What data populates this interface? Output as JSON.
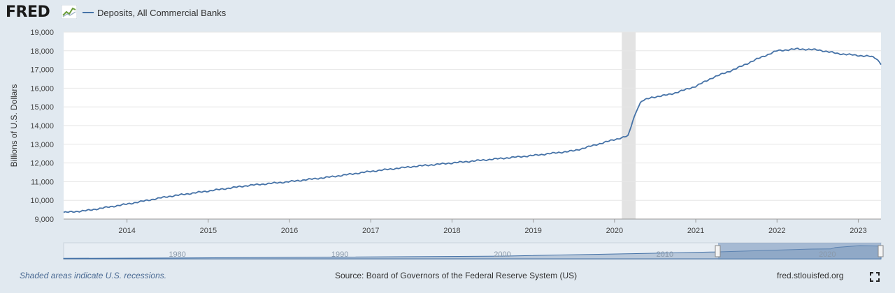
{
  "brand": {
    "name": "FRED"
  },
  "legend": {
    "series_name": "Deposits, All Commercial Banks",
    "color": "#4572a7"
  },
  "footer": {
    "recession_note": "Shaded areas indicate U.S. recessions.",
    "source": "Source: Board of Governors of the Federal Reserve System (US)",
    "url": "fred.stlouisfed.org",
    "fullscreen_icon": "fullscreen-icon"
  },
  "navigator": {
    "labels": [
      "1980",
      "1990",
      "2000",
      "2010",
      "2020"
    ]
  },
  "chart_data": {
    "type": "line",
    "title": "",
    "xlabel": "",
    "ylabel": "Billions of U.S. Dollars",
    "ylim": [
      9000,
      19000
    ],
    "xlim": [
      2013.22,
      2023.28
    ],
    "yticks": [
      "9,000",
      "10,000",
      "11,000",
      "12,000",
      "13,000",
      "14,000",
      "15,000",
      "16,000",
      "17,000",
      "18,000",
      "19,000"
    ],
    "xticks": [
      "2014",
      "2015",
      "2016",
      "2017",
      "2018",
      "2019",
      "2020",
      "2021",
      "2022",
      "2023"
    ],
    "grid": true,
    "recession": {
      "start": 2020.09,
      "end": 2020.26,
      "color": "#e3e3e3"
    },
    "series": [
      {
        "name": "Deposits, All Commercial Banks",
        "color": "#4572a7",
        "x": [
          2013.22,
          2013.5,
          2014.0,
          2014.5,
          2015.0,
          2015.5,
          2016.0,
          2016.5,
          2017.0,
          2017.5,
          2018.0,
          2018.5,
          2019.0,
          2019.5,
          2020.0,
          2020.17,
          2020.22,
          2020.28,
          2020.33,
          2020.45,
          2020.6,
          2020.75,
          2021.0,
          2021.2,
          2021.5,
          2021.75,
          2022.0,
          2022.25,
          2022.5,
          2022.75,
          2023.0,
          2023.15,
          2023.22,
          2023.28
        ],
        "y": [
          9350,
          9450,
          9800,
          10200,
          10500,
          10800,
          11000,
          11250,
          11550,
          11800,
          12000,
          12200,
          12400,
          12650,
          13250,
          13450,
          14200,
          14900,
          15300,
          15500,
          15600,
          15750,
          16100,
          16550,
          17050,
          17550,
          18000,
          18100,
          18050,
          17850,
          17750,
          17700,
          17600,
          17300
        ]
      }
    ]
  }
}
